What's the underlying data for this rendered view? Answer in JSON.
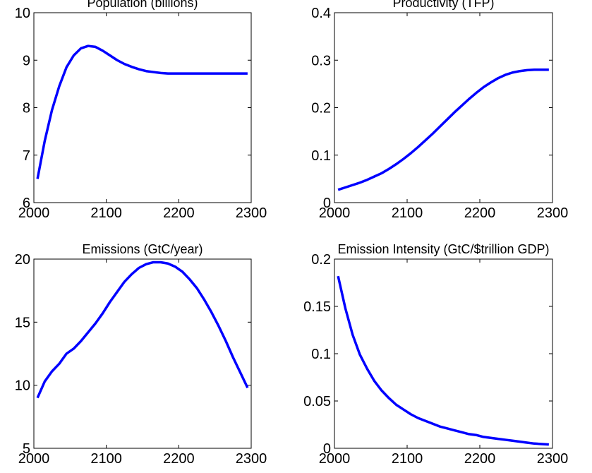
{
  "chart_data": [
    {
      "type": "line",
      "title": "Population (billions)",
      "x": [
        2005,
        2015,
        2025,
        2035,
        2045,
        2055,
        2065,
        2075,
        2085,
        2095,
        2105,
        2115,
        2125,
        2135,
        2145,
        2155,
        2165,
        2175,
        2185,
        2195,
        2205,
        2215,
        2225,
        2235,
        2245,
        2255,
        2265,
        2275,
        2285,
        2295
      ],
      "series": [
        {
          "color": "#0000ff",
          "values": [
            6.5,
            7.3,
            7.95,
            8.45,
            8.85,
            9.1,
            9.25,
            9.3,
            9.28,
            9.2,
            9.1,
            9.0,
            8.92,
            8.86,
            8.81,
            8.77,
            8.75,
            8.73,
            8.72,
            8.72,
            8.72,
            8.72,
            8.72,
            8.72,
            8.72,
            8.72,
            8.72,
            8.72,
            8.72,
            8.72
          ]
        }
      ],
      "xlim": [
        2000,
        2300
      ],
      "xticks": [
        2000,
        2100,
        2200,
        2300
      ],
      "ylim": [
        6,
        10
      ],
      "yticks": [
        6,
        7,
        8,
        9,
        10
      ]
    },
    {
      "type": "line",
      "title": "Productivity (TFP)",
      "x": [
        2005,
        2015,
        2025,
        2035,
        2045,
        2055,
        2065,
        2075,
        2085,
        2095,
        2105,
        2115,
        2125,
        2135,
        2145,
        2155,
        2165,
        2175,
        2185,
        2195,
        2205,
        2215,
        2225,
        2235,
        2245,
        2255,
        2265,
        2275,
        2285,
        2295
      ],
      "series": [
        {
          "color": "#0000ff",
          "values": [
            0.027,
            0.032,
            0.037,
            0.042,
            0.048,
            0.055,
            0.062,
            0.071,
            0.081,
            0.092,
            0.104,
            0.117,
            0.131,
            0.145,
            0.16,
            0.175,
            0.19,
            0.204,
            0.218,
            0.231,
            0.243,
            0.253,
            0.262,
            0.269,
            0.274,
            0.277,
            0.279,
            0.28,
            0.28,
            0.28
          ]
        }
      ],
      "xlim": [
        2000,
        2300
      ],
      "xticks": [
        2000,
        2100,
        2200,
        2300
      ],
      "ylim": [
        0,
        0.4
      ],
      "yticks": [
        0,
        0.1,
        0.2,
        0.3,
        0.4
      ]
    },
    {
      "type": "line",
      "title": "Emissions (GtC/year)",
      "x": [
        2005,
        2015,
        2025,
        2035,
        2045,
        2055,
        2065,
        2075,
        2085,
        2095,
        2105,
        2115,
        2125,
        2135,
        2145,
        2155,
        2165,
        2175,
        2185,
        2195,
        2205,
        2215,
        2225,
        2235,
        2245,
        2255,
        2265,
        2275,
        2285,
        2295
      ],
      "series": [
        {
          "color": "#0000ff",
          "values": [
            9,
            10.3,
            11.1,
            11.7,
            12.5,
            12.9,
            13.5,
            14.2,
            14.9,
            15.7,
            16.6,
            17.4,
            18.2,
            18.8,
            19.3,
            19.6,
            19.75,
            19.75,
            19.65,
            19.4,
            19.0,
            18.4,
            17.7,
            16.8,
            15.8,
            14.7,
            13.5,
            12.2,
            11.0,
            9.8
          ]
        }
      ],
      "xlim": [
        2000,
        2300
      ],
      "xticks": [
        2000,
        2100,
        2200,
        2300
      ],
      "ylim": [
        5,
        20
      ],
      "yticks": [
        5,
        10,
        15,
        20
      ]
    },
    {
      "type": "line",
      "title": "Emission Intensity (GtC/$trillion GDP)",
      "x": [
        2005,
        2015,
        2025,
        2035,
        2045,
        2055,
        2065,
        2075,
        2085,
        2095,
        2105,
        2115,
        2125,
        2135,
        2145,
        2155,
        2165,
        2175,
        2185,
        2195,
        2205,
        2215,
        2225,
        2235,
        2245,
        2255,
        2265,
        2275,
        2285,
        2295
      ],
      "series": [
        {
          "color": "#0000ff",
          "values": [
            0.182,
            0.148,
            0.12,
            0.099,
            0.084,
            0.071,
            0.061,
            0.053,
            0.046,
            0.041,
            0.036,
            0.032,
            0.029,
            0.026,
            0.023,
            0.021,
            0.019,
            0.017,
            0.015,
            0.014,
            0.012,
            0.011,
            0.01,
            0.009,
            0.008,
            0.007,
            0.006,
            0.005,
            0.0045,
            0.004
          ]
        }
      ],
      "xlim": [
        2000,
        2300
      ],
      "xticks": [
        2000,
        2100,
        2200,
        2300
      ],
      "ylim": [
        0,
        0.2
      ],
      "yticks": [
        0,
        0.05,
        0.1,
        0.15,
        0.2
      ]
    }
  ]
}
